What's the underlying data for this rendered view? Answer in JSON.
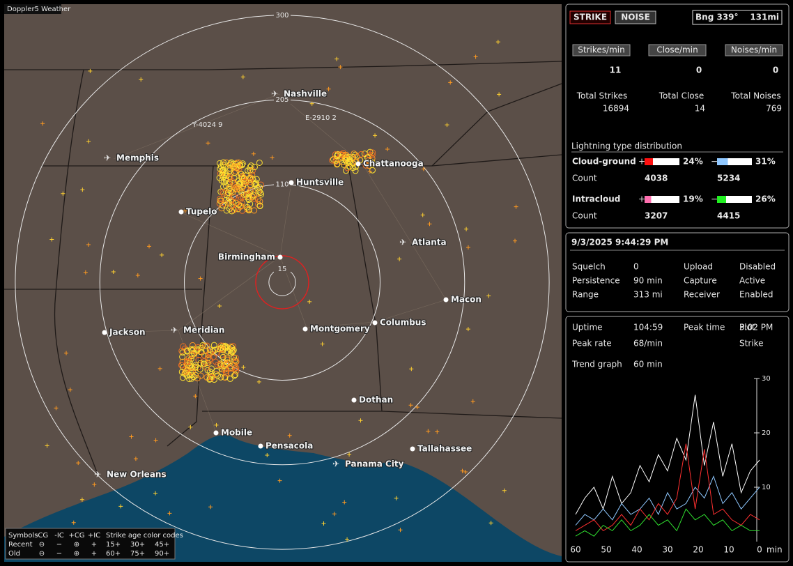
{
  "window_title": "Doppler5 Weather",
  "map": {
    "range_rings": [
      15,
      110,
      205,
      300
    ],
    "cities": [
      {
        "name": "Nashville",
        "airport": true
      },
      {
        "name": "Memphis",
        "airport": true
      },
      {
        "name": "Chattanooga",
        "airport": false
      },
      {
        "name": "Huntsville",
        "airport": false
      },
      {
        "name": "Tupelo",
        "airport": false
      },
      {
        "name": "Atlanta",
        "airport": true
      },
      {
        "name": "Birmingham",
        "airport": false
      },
      {
        "name": "Macon",
        "airport": false
      },
      {
        "name": "Jackson",
        "airport": false
      },
      {
        "name": "Meridian",
        "airport": true
      },
      {
        "name": "Montgomery",
        "airport": false
      },
      {
        "name": "Columbus",
        "airport": false
      },
      {
        "name": "Dothan",
        "airport": false
      },
      {
        "name": "Mobile",
        "airport": false
      },
      {
        "name": "Pensacola",
        "airport": false
      },
      {
        "name": "Tallahassee",
        "airport": false
      },
      {
        "name": "Panama City",
        "airport": true
      },
      {
        "name": "New Orleans",
        "airport": true
      }
    ],
    "markers": [
      "Y-4024 9",
      "E-2910 2"
    ],
    "legend": {
      "symbols_title": "Symbols",
      "symbols": [
        "-CG",
        "-IC",
        "+CG",
        "+IC"
      ],
      "age_title": "Strike age color codes",
      "rows": [
        "Recent",
        "Old"
      ],
      "recent_ages": [
        "15+",
        "30+",
        "45+"
      ],
      "old_ages": [
        "60+",
        "75+",
        "90+"
      ]
    }
  },
  "panel": {
    "mode_buttons": [
      "STRIKE",
      "NOISE"
    ],
    "bearing": "Bng 339°",
    "distance": "131mi",
    "rates": [
      {
        "label": "Strikes/min",
        "value": 11,
        "total_label": "Total Strikes",
        "total": 16894
      },
      {
        "label": "Close/min",
        "value": 0,
        "total_label": "Total Close",
        "total": 14
      },
      {
        "label": "Noises/min",
        "value": 0,
        "total_label": "Total Noises",
        "total": 769
      }
    ],
    "distribution": {
      "title": "Lightning type distribution",
      "count_label": "Count",
      "types": [
        {
          "name": "Cloud-ground",
          "signs": [
            "+",
            "−"
          ],
          "values": [
            24,
            31
          ],
          "value_labels": [
            "24%",
            "31%"
          ],
          "counts": [
            4038,
            5234
          ]
        },
        {
          "name": "Intracloud",
          "signs": [
            "+",
            "−"
          ],
          "values": [
            19,
            26
          ],
          "value_labels": [
            "19%",
            "26%"
          ],
          "counts": [
            3207,
            4415
          ]
        }
      ]
    },
    "datetime": "9/3/2025 9:44:29 PM",
    "settings": [
      [
        "Squelch",
        "0",
        "Upload",
        "Disabled"
      ],
      [
        "Persistence",
        "90 min",
        "Capture",
        "Active"
      ],
      [
        "Range",
        "313 mi",
        "Receiver",
        "Enabled"
      ]
    ],
    "stats": [
      [
        "Uptime",
        "104:59",
        "Peak time",
        "3:02 PM",
        "Plot"
      ],
      [
        "Peak rate",
        "68/min",
        "",
        "",
        "Strike"
      ],
      [
        "Trend graph",
        "60 min"
      ]
    ]
  },
  "chart_data": {
    "type": "line",
    "x": [
      60,
      57,
      54,
      51,
      48,
      45,
      42,
      39,
      36,
      33,
      30,
      27,
      24,
      21,
      18,
      15,
      12,
      9,
      6,
      3,
      0
    ],
    "xlim": [
      60,
      0
    ],
    "xticks": [
      60,
      50,
      40,
      30,
      20,
      10,
      0
    ],
    "x_label": "min",
    "ylim": [
      0,
      30
    ],
    "yticks": [
      10,
      20,
      30
    ],
    "series": [
      {
        "color": "#ffffff",
        "values": [
          5,
          8,
          10,
          6,
          12,
          7,
          9,
          14,
          11,
          16,
          13,
          19,
          15,
          27,
          14,
          22,
          12,
          18,
          9,
          13,
          15
        ]
      },
      {
        "color": "#8fc8ff",
        "values": [
          3,
          5,
          4,
          6,
          4,
          7,
          5,
          6,
          8,
          5,
          9,
          6,
          7,
          10,
          8,
          12,
          7,
          9,
          6,
          8,
          10
        ]
      },
      {
        "color": "#ff3030",
        "values": [
          2,
          3,
          4,
          2,
          3,
          5,
          3,
          6,
          4,
          7,
          5,
          8,
          18,
          6,
          17,
          5,
          6,
          4,
          3,
          5,
          4
        ]
      },
      {
        "color": "#30e030",
        "values": [
          1,
          2,
          1,
          3,
          2,
          4,
          2,
          3,
          5,
          3,
          4,
          2,
          6,
          4,
          5,
          3,
          4,
          2,
          3,
          2,
          2
        ]
      }
    ]
  }
}
